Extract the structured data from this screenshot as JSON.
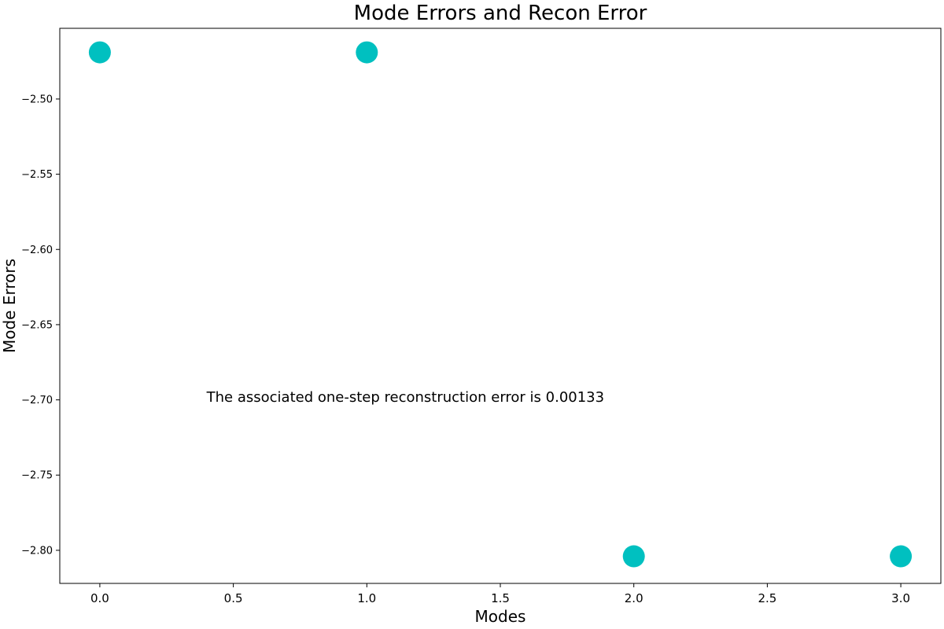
{
  "chart_data": {
    "type": "scatter",
    "title": "Mode Errors and Recon Error",
    "xlabel": "Modes",
    "ylabel": "Mode Errors",
    "x": [
      0,
      1,
      2,
      3
    ],
    "y": [
      -2.469,
      -2.469,
      -2.804,
      -2.804
    ],
    "xlim": [
      -0.15,
      3.15
    ],
    "ylim": [
      -2.822,
      -2.453
    ],
    "xticks": [
      0.0,
      0.5,
      1.0,
      1.5,
      2.0,
      2.5,
      3.0
    ],
    "xtick_labels": [
      "0.0",
      "0.5",
      "1.0",
      "1.5",
      "2.0",
      "2.5",
      "3.0"
    ],
    "yticks": [
      -2.5,
      -2.55,
      -2.6,
      -2.65,
      -2.7,
      -2.75,
      -2.8
    ],
    "ytick_labels": [
      "−2.50",
      "−2.55",
      "−2.60",
      "−2.65",
      "−2.70",
      "−2.75",
      "−2.80"
    ],
    "marker_color": "#00c0c0",
    "grid": false,
    "annotation": {
      "text": "The associated one-step reconstruction error is 0.00133",
      "x": 0.4,
      "y": -2.698
    }
  }
}
